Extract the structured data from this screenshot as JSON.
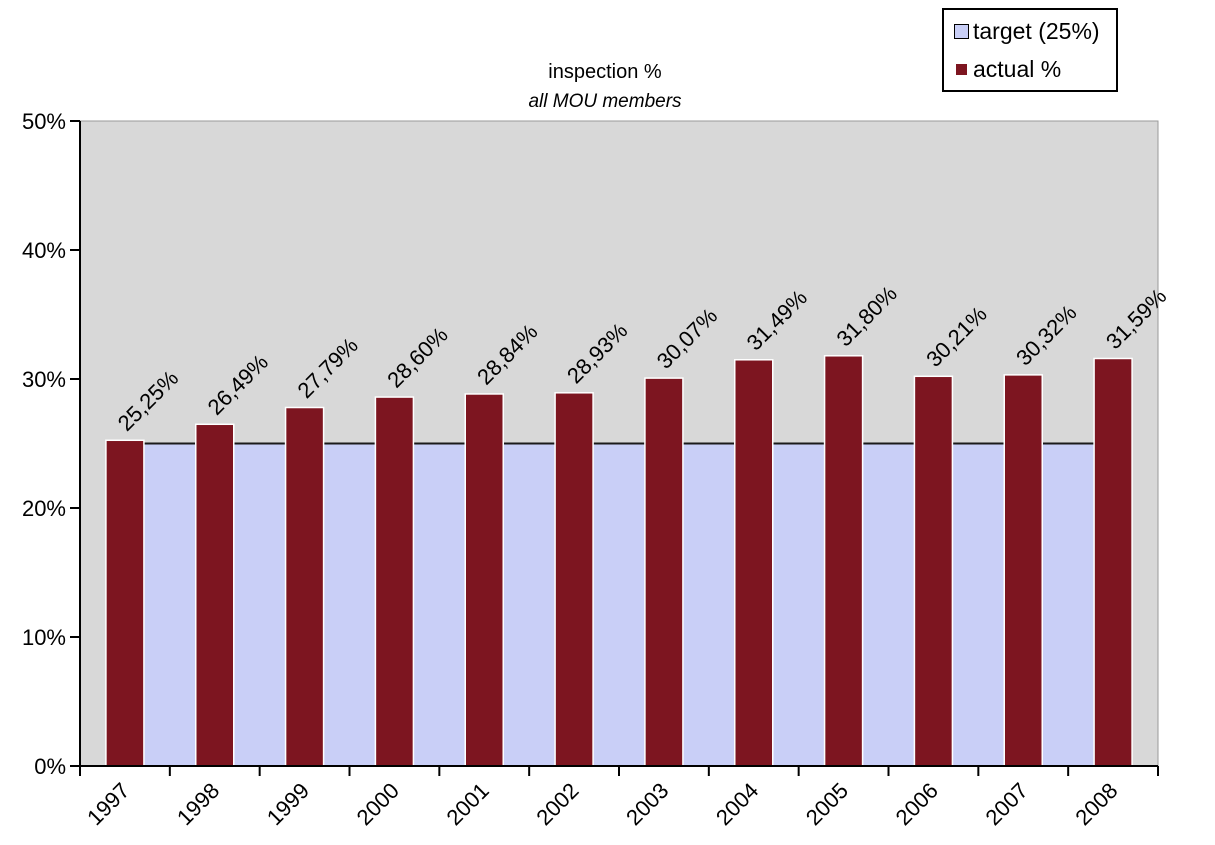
{
  "chart_data": {
    "type": "bar",
    "title": "inspection %",
    "subtitle": "all MOU members",
    "xlabel": "",
    "ylabel": "",
    "ylim": [
      0,
      50
    ],
    "yticks": [
      "0%",
      "10%",
      "20%",
      "30%",
      "40%",
      "50%"
    ],
    "categories": [
      "1997",
      "1998",
      "1999",
      "2000",
      "2001",
      "2002",
      "2003",
      "2004",
      "2005",
      "2006",
      "2007",
      "2008"
    ],
    "series": [
      {
        "name": "target (25%)",
        "type": "area",
        "color": "#c9cff7",
        "values": [
          25,
          25,
          25,
          25,
          25,
          25,
          25,
          25,
          25,
          25,
          25,
          25
        ]
      },
      {
        "name": "actual %",
        "type": "bar",
        "color": "#7d1520",
        "values": [
          25.25,
          26.49,
          27.79,
          28.6,
          28.84,
          28.93,
          30.07,
          31.49,
          31.8,
          30.21,
          30.32,
          31.59
        ],
        "labels": [
          "25,25%",
          "26,49%",
          "27,79%",
          "28,60%",
          "28,84%",
          "28,93%",
          "30,07%",
          "31,49%",
          "31,80%",
          "30,21%",
          "30,32%",
          "31,59%"
        ]
      }
    ],
    "grid": false,
    "legend_position": "top-right",
    "plot_background": "#d8d8d8"
  }
}
